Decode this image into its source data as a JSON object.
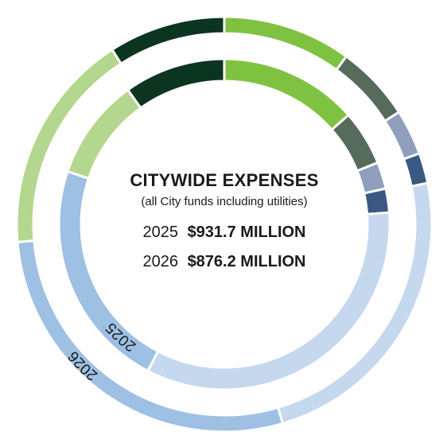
{
  "chart_data": {
    "type": "pie",
    "title": "CITYWIDE EXPENSES",
    "subtitle": "(all City funds including utilities)",
    "totals": [
      {
        "year": "2025",
        "amount": "$931.7 MILLION"
      },
      {
        "year": "2026",
        "amount": "$876.2 MILLION"
      }
    ],
    "ring_labels": {
      "inner": "2025",
      "outer": "2026"
    },
    "series": [
      {
        "ring": "inner",
        "year": "2025",
        "slices": [
          {
            "value": 15.0,
            "color": "#7fc241"
          },
          {
            "value": 6.0,
            "color": "#566b5b"
          },
          {
            "value": 2.9,
            "color": "#8f9fbc"
          },
          {
            "value": 2.6,
            "color": "#3b5784"
          },
          {
            "value": 37.5,
            "color": "#c6d8ee"
          },
          {
            "value": 25.0,
            "color": "#9dc0e3"
          },
          {
            "value": 11.0,
            "color": "#b3d78e"
          },
          {
            "value": 11.0,
            "color": "#0b3520"
          }
        ]
      },
      {
        "ring": "outer",
        "year": "2026",
        "slices": [
          {
            "value": 11.0,
            "color": "#7fc241"
          },
          {
            "value": 6.5,
            "color": "#566b5b"
          },
          {
            "value": 3.9,
            "color": "#8f9fbc"
          },
          {
            "value": 2.6,
            "color": "#3b5784"
          },
          {
            "value": 26.0,
            "color": "#c6d8ee"
          },
          {
            "value": 31.0,
            "color": "#9dc0e3"
          },
          {
            "value": 19.0,
            "color": "#b3d78e"
          },
          {
            "value": 10.0,
            "color": "#0b3520"
          }
        ]
      }
    ]
  }
}
